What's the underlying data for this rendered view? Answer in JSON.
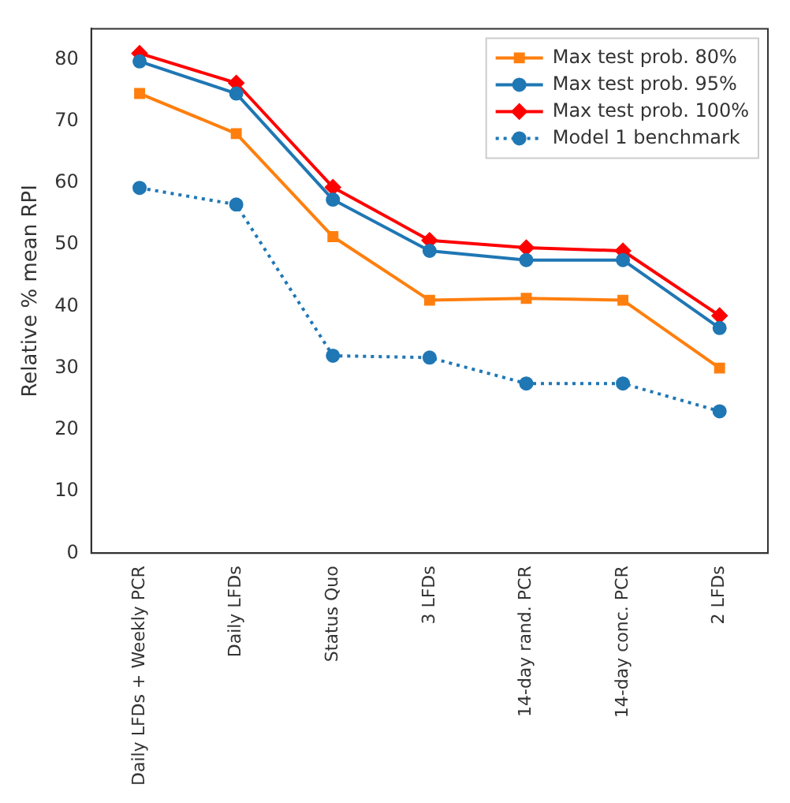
{
  "chart_data": {
    "type": "line",
    "ylabel": "Relative % mean RPI",
    "categories": [
      "Daily LFDs + Weekly PCR",
      "Daily LFDs",
      "Status Quo",
      "3 LFDs",
      "14-day rand. PCR",
      "14-day conc. PCR",
      "2 LFDs"
    ],
    "series": [
      {
        "name": "Max test prob. 80%",
        "color": "#ff7f0e",
        "marker": "square",
        "line_style": "solid",
        "values": [
          74.5,
          68,
          51.3,
          41,
          41.3,
          41,
          30
        ]
      },
      {
        "name": "Max test prob. 95%",
        "color": "#1f77b4",
        "marker": "circle",
        "line_style": "solid",
        "values": [
          79.7,
          74.5,
          57.3,
          49,
          47.5,
          47.5,
          36.5
        ]
      },
      {
        "name": "Max test prob. 100%",
        "color": "#ff0000",
        "marker": "diamond",
        "line_style": "solid",
        "values": [
          81,
          76.2,
          59.3,
          50.7,
          49.5,
          49,
          38.5
        ]
      },
      {
        "name": "Model 1 benchmark",
        "color": "#1f77b4",
        "marker": "circle",
        "line_style": "dotted",
        "values": [
          59.2,
          56.5,
          32,
          31.7,
          27.5,
          27.5,
          23
        ]
      }
    ],
    "ylim": [
      0,
      85
    ],
    "yticks": [
      0,
      10,
      20,
      30,
      40,
      50,
      60,
      70,
      80
    ],
    "grid": false,
    "legend": "top right"
  }
}
